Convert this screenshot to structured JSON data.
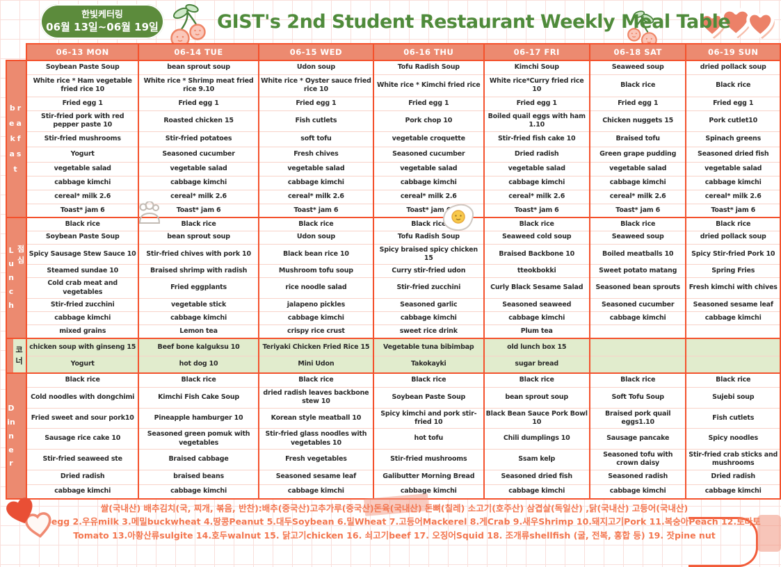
{
  "page": {
    "badge_title": "한빛케터링",
    "badge_dates": "06월 13일~06월 19일",
    "title": "GIST's 2nd Student Restaurant Weekly Meal Table"
  },
  "section_labels": {
    "breakfast": "breakfast",
    "lunch_en": "Lunch",
    "lunch_ko": "점심",
    "corner_ko": "코너",
    "dinner": "Dinner"
  },
  "colors": {
    "border": "#F4512C",
    "header_bg": "#EC8A70",
    "corner_bg": "#E1ECCD",
    "badge_green": "#5C8B3C",
    "title_green": "#4F8B3B",
    "footer_text": "#F3764F",
    "item_black": "#2A2A2A",
    "item_pink": "#FF2E7C",
    "item_green": "#1FB24E",
    "item_purple": "#A64CD6",
    "item_orange": "#FC5B2E",
    "item_blue": "#29A0F2"
  },
  "icons": {
    "title_left": "cherry-doodle",
    "title_right": "cherry-doodle",
    "top_right": "triple-hearts",
    "breakfast_row": [
      "steamed-bun-doodle",
      "fried-egg-doodle"
    ],
    "footer": [
      "washi-tape",
      "double-hearts",
      "speech-bubble-curve",
      "watercolor-band"
    ]
  },
  "days": [
    {
      "header": "06-13 MON",
      "breakfast": [
        [
          "Soybean Paste Soup",
          "k"
        ],
        [
          "White rice * Ham vegetable fried rice 10",
          "p"
        ],
        [
          "Fried egg 1",
          "k"
        ],
        [
          "Stir-fried pork with red pepper paste 10",
          "g"
        ],
        [
          "Stir-fried mushrooms",
          "u"
        ],
        [
          "Yogurt",
          "o"
        ],
        [
          "vegetable salad",
          "k"
        ],
        [
          "cabbage kimchi",
          "k"
        ],
        [
          "cereal* milk 2.6",
          "k"
        ],
        [
          "Toast* jam 6",
          "k"
        ]
      ],
      "lunch": [
        [
          "Black rice",
          "k"
        ],
        [
          "Soybean Paste Soup",
          "k"
        ],
        [
          "Spicy Sausage Stew Sauce 10",
          "p"
        ],
        [
          "Steamed sundae 10",
          "b"
        ],
        [
          "Cold crab meat and vegetables",
          "o"
        ],
        [
          "Stir-fried zucchini",
          "k"
        ],
        [
          "cabbage kimchi",
          "k"
        ],
        [
          "mixed grains",
          "k"
        ]
      ],
      "corner": [
        "chicken soup with ginseng 15",
        "Yogurt"
      ],
      "dinner": [
        [
          "Black rice",
          "k"
        ],
        [
          "Cold noodles with dongchimi",
          "p"
        ],
        [
          "Fried sweet and sour pork10",
          "g"
        ],
        [
          "Sausage rice cake 10",
          "b"
        ],
        [
          "Stir-fried seaweed ste",
          "o"
        ],
        [
          "Dried radish",
          "k"
        ],
        [
          "cabbage kimchi",
          "k"
        ]
      ]
    },
    {
      "header": "06-14 TUE",
      "breakfast": [
        [
          "bean sprout soup",
          "k"
        ],
        [
          "White rice * Shrimp meat fried rice 9.10",
          "p"
        ],
        [
          "Fried egg 1",
          "k"
        ],
        [
          "Roasted chicken 15",
          "g"
        ],
        [
          "Stir-fried potatoes",
          "u"
        ],
        [
          "Seasoned cucumber",
          "o"
        ],
        [
          "vegetable salad",
          "k"
        ],
        [
          "cabbage kimchi",
          "k"
        ],
        [
          "cereal* milk 2.6",
          "k"
        ],
        [
          "Toast* jam 6",
          "k"
        ]
      ],
      "lunch": [
        [
          "Black rice",
          "k"
        ],
        [
          "bean sprout soup",
          "k"
        ],
        [
          "Stir-fried chives with pork 10",
          "p"
        ],
        [
          "Braised shrimp with radish",
          "b"
        ],
        [
          "Fried eggplants",
          "o"
        ],
        [
          "vegetable stick",
          "k"
        ],
        [
          "cabbage kimchi",
          "k"
        ],
        [
          "Lemon tea",
          "k"
        ]
      ],
      "corner": [
        "Beef bone kalguksu 10",
        "hot dog 10"
      ],
      "dinner": [
        [
          "Black rice",
          "k"
        ],
        [
          "Kimchi Fish Cake Soup",
          "p"
        ],
        [
          "Pineapple hamburger 10",
          "g"
        ],
        [
          "Seasoned green pomuk with vegetables",
          "b"
        ],
        [
          "Braised cabbage",
          "o"
        ],
        [
          "braised beans",
          "k"
        ],
        [
          "cabbage kimchi",
          "k"
        ]
      ]
    },
    {
      "header": "06-15 WED",
      "breakfast": [
        [
          "Udon soup",
          "k"
        ],
        [
          "White rice * Oyster sauce fried rice 10",
          "p"
        ],
        [
          "Fried egg 1",
          "k"
        ],
        [
          "Fish cutlets",
          "g"
        ],
        [
          "soft tofu",
          "u"
        ],
        [
          "Fresh chives",
          "o"
        ],
        [
          "vegetable salad",
          "k"
        ],
        [
          "cabbage kimchi",
          "k"
        ],
        [
          "cereal* milk 2.6",
          "k"
        ],
        [
          "Toast* jam 6",
          "k"
        ]
      ],
      "lunch": [
        [
          "Black rice",
          "k"
        ],
        [
          "Udon soup",
          "k"
        ],
        [
          "Black bean rice 10",
          "p"
        ],
        [
          "Mushroom tofu soup",
          "b"
        ],
        [
          "rice noodle salad",
          "o"
        ],
        [
          "jalapeno pickles",
          "k"
        ],
        [
          "cabbage kimchi",
          "k"
        ],
        [
          "crispy rice crust",
          "k"
        ]
      ],
      "corner": [
        "Teriyaki Chicken Fried Rice 15",
        "Mini Udon"
      ],
      "dinner": [
        [
          "Black rice",
          "k"
        ],
        [
          "dried radish leaves backbone stew 10",
          "p"
        ],
        [
          "Korean style meatball 10",
          "g"
        ],
        [
          "Stir-fried glass noodles with vegetables 10",
          "b"
        ],
        [
          "Fresh vegetables",
          "o"
        ],
        [
          "Seasoned sesame leaf",
          "k"
        ],
        [
          "cabbage kimchi",
          "k"
        ]
      ]
    },
    {
      "header": "06-16 THU",
      "breakfast": [
        [
          "Tofu Radish Soup",
          "k"
        ],
        [
          "White rice * Kimchi fried rice",
          "p"
        ],
        [
          "Fried egg 1",
          "k"
        ],
        [
          "Pork chop 10",
          "g"
        ],
        [
          "vegetable croquette",
          "u"
        ],
        [
          "Seasoned cucumber",
          "o"
        ],
        [
          "vegetable salad",
          "k"
        ],
        [
          "cabbage kimchi",
          "k"
        ],
        [
          "cereal* milk 2.6",
          "k"
        ],
        [
          "Toast* jam 6",
          "k"
        ]
      ],
      "lunch": [
        [
          "Black rice",
          "k"
        ],
        [
          "Tofu Radish Soup",
          "k"
        ],
        [
          "Spicy braised spicy chicken 15",
          "p"
        ],
        [
          "Curry stir-fried udon",
          "b"
        ],
        [
          "Stir-fried zucchini",
          "o"
        ],
        [
          "Seasoned garlic",
          "k"
        ],
        [
          "cabbage kimchi",
          "k"
        ],
        [
          "sweet rice drink",
          "k"
        ]
      ],
      "corner": [
        "Vegetable tuna bibimbap",
        "Takokayki"
      ],
      "dinner": [
        [
          "Black rice",
          "k"
        ],
        [
          "Soybean Paste Soup",
          "p"
        ],
        [
          "Spicy kimchi and pork stir-fried 10",
          "g"
        ],
        [
          "hot tofu",
          "b"
        ],
        [
          "Stir-fried mushrooms",
          "o"
        ],
        [
          "Galibutter Morning Bread",
          "k"
        ],
        [
          "cabbage kimchi",
          "k"
        ]
      ]
    },
    {
      "header": "06-17 FRI",
      "breakfast": [
        [
          "Kimchi Soup",
          "k"
        ],
        [
          "White rice*Curry fried rice 10",
          "p"
        ],
        [
          "Fried egg 1",
          "k"
        ],
        [
          "Boiled quail eggs with ham 1.10",
          "g"
        ],
        [
          "Stir-fried fish cake 10",
          "u"
        ],
        [
          "Dried radish",
          "o"
        ],
        [
          "vegetable salad",
          "k"
        ],
        [
          "cabbage kimchi",
          "k"
        ],
        [
          "cereal* milk 2.6",
          "k"
        ],
        [
          "Toast* jam 6",
          "k"
        ]
      ],
      "lunch": [
        [
          "Black rice",
          "k"
        ],
        [
          "Seaweed cold soup",
          "k"
        ],
        [
          "Braised Backbone 10",
          "p"
        ],
        [
          "tteokbokki",
          "b"
        ],
        [
          "Curly Black Sesame Salad",
          "o"
        ],
        [
          "Seasoned seaweed",
          "k"
        ],
        [
          "cabbage kimchi",
          "k"
        ],
        [
          "Plum tea",
          "k"
        ]
      ],
      "corner": [
        "old lunch box 15",
        "sugar bread"
      ],
      "dinner": [
        [
          "Black rice",
          "k"
        ],
        [
          "bean sprout soup",
          "p"
        ],
        [
          "Black Bean Sauce Pork Bowl 10",
          "g"
        ],
        [
          "Chili dumplings 10",
          "b"
        ],
        [
          "Ssam kelp",
          "o"
        ],
        [
          "Seasoned dried fish",
          "k"
        ],
        [
          "cabbage kimchi",
          "k"
        ]
      ]
    },
    {
      "header": "06-18 SAT",
      "breakfast": [
        [
          "Seaweed soup",
          "k"
        ],
        [
          "Black rice",
          "p"
        ],
        [
          "Fried egg 1",
          "k"
        ],
        [
          "Chicken nuggets 15",
          "g"
        ],
        [
          "Braised tofu",
          "u"
        ],
        [
          "Green grape pudding",
          "o"
        ],
        [
          "vegetable salad",
          "k"
        ],
        [
          "cabbage kimchi",
          "k"
        ],
        [
          "cereal* milk 2.6",
          "k"
        ],
        [
          "Toast* jam 6",
          "k"
        ]
      ],
      "lunch": [
        [
          "Black rice",
          "k"
        ],
        [
          "Seaweed soup",
          "k"
        ],
        [
          "Boiled meatballs 10",
          "p"
        ],
        [
          "Sweet potato matang",
          "b"
        ],
        [
          "Seasoned bean sprouts",
          "o"
        ],
        [
          "Seasoned cucumber",
          "k"
        ],
        [
          "cabbage kimchi",
          "k"
        ]
      ],
      "corner": [],
      "dinner": [
        [
          "Black rice",
          "k"
        ],
        [
          "Soft Tofu Soup",
          "p"
        ],
        [
          "Braised pork quail eggs1.10",
          "g"
        ],
        [
          "Sausage pancake",
          "b"
        ],
        [
          "Seasoned tofu with crown daisy",
          "o"
        ],
        [
          "Seasoned radish",
          "k"
        ],
        [
          "cabbage kimchi",
          "k"
        ]
      ]
    },
    {
      "header": "06-19 SUN",
      "breakfast": [
        [
          "dried pollack soup",
          "k"
        ],
        [
          "Black rice",
          "p"
        ],
        [
          "Fried egg 1",
          "k"
        ],
        [
          "Pork cutlet10",
          "g"
        ],
        [
          "Spinach greens",
          "u"
        ],
        [
          "Seasoned dried fish",
          "o"
        ],
        [
          "vegetable salad",
          "k"
        ],
        [
          "cabbage kimchi",
          "k"
        ],
        [
          "cereal* milk 2.6",
          "k"
        ],
        [
          "Toast* jam 6",
          "k"
        ]
      ],
      "lunch": [
        [
          "Black rice",
          "k"
        ],
        [
          "dried pollack soup",
          "k"
        ],
        [
          "Spicy Stir-fried Pork 10",
          "p"
        ],
        [
          "Spring Fries",
          "b"
        ],
        [
          "Fresh kimchi with chives",
          "o"
        ],
        [
          "Seasoned sesame leaf",
          "k"
        ],
        [
          "cabbage kimchi",
          "k"
        ]
      ],
      "corner": [],
      "dinner": [
        [
          "Black rice",
          "k"
        ],
        [
          "Sujebi soup",
          "k"
        ],
        [
          "Fish cutlets",
          "g"
        ],
        [
          "Spicy noodles",
          "b"
        ],
        [
          "Stir-fried crab sticks and mushrooms",
          "o"
        ],
        [
          "Dried radish",
          "k"
        ],
        [
          "cabbage kimchi",
          "k"
        ]
      ]
    }
  ],
  "footer": {
    "line1": "쌀(국내산) 배추김치(국, 찌개, 볶음, 반찬):배추(중국산)고추가루(중국산)돈육(국내산) 돈뼈(칠레) 소고기(호주산) 삼겹살(독일산) ,닭(국내산) 고등어(국내산)",
    "line2": "#란류egg 2.우유milk 3.메밀buckwheat 4.땅콩Peanut 5.대두Soybean 6.밀Wheat 7.고등어Mackerel 8.게Crab 9.새우Shrimp 10.돼지고기Pork 11.복숭아Peach 12.토마토Tomato 13.아황산류sulgite 14.호두walnut 15. 닭고기chicken 16. 쇠고기beef 17. 오징어Squid 18. 조개류shellfish (굴, 전복, 홍합 등) 19. 잣pine nut"
  }
}
